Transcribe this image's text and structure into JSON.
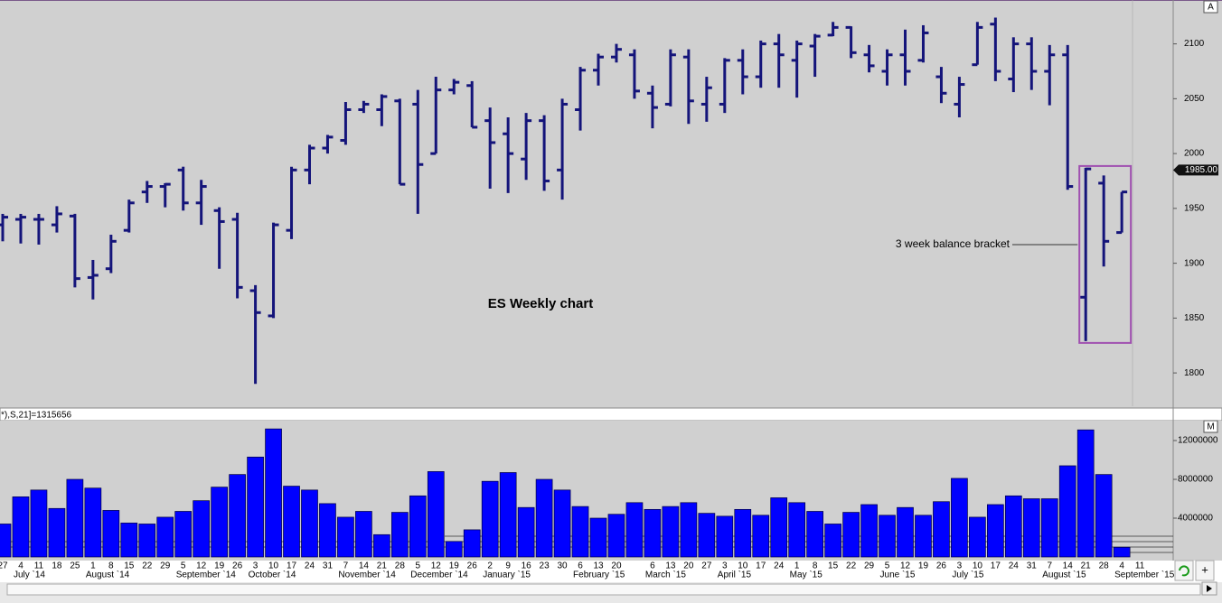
{
  "chart_data": {
    "type": "ohlc",
    "title": "ES Weekly chart",
    "annotation": "3 week balance bracket",
    "indicator_label": "*),S,21]=1315656",
    "last_price": {
      "value": 1985,
      "label": "1985.00"
    },
    "price_axis_button": "A",
    "volume_axis_button": "M",
    "categories": [
      "27",
      "4",
      "11",
      "18",
      "25",
      "1",
      "8",
      "15",
      "22",
      "29",
      "5",
      "12",
      "19",
      "26",
      "3",
      "10",
      "17",
      "24",
      "31",
      "7",
      "14",
      "21",
      "28",
      "5",
      "12",
      "19",
      "26",
      "2",
      "9",
      "16",
      "23",
      "30",
      "6",
      "13",
      "20",
      null,
      "6",
      "13",
      "20",
      "27",
      "3",
      "10",
      "17",
      "24",
      "1",
      "8",
      "15",
      "22",
      "29",
      "5",
      "12",
      "19",
      "26",
      "3",
      "10",
      "17",
      "24",
      "31",
      "7",
      "14",
      "21",
      "28",
      "4",
      "11"
    ],
    "months": [
      {
        "label": "July `14",
        "category": 1
      },
      {
        "label": "August `14",
        "category": 5
      },
      {
        "label": "September `14",
        "category": 10
      },
      {
        "label": "October `14",
        "category": 14
      },
      {
        "label": "November `14",
        "category": 19
      },
      {
        "label": "December `14",
        "category": 23
      },
      {
        "label": "January `15",
        "category": 27
      },
      {
        "label": "February `15",
        "category": 32
      },
      {
        "label": "March `15",
        "category": 36
      },
      {
        "label": "April `15",
        "category": 40
      },
      {
        "label": "May `15",
        "category": 44
      },
      {
        "label": "June `15",
        "category": 49
      },
      {
        "label": "July `15",
        "category": 53
      },
      {
        "label": "August `15",
        "category": 58
      },
      {
        "label": "September `15",
        "category": 62
      }
    ],
    "color": "#14147a",
    "open": [
      1935,
      1940,
      1940,
      1935,
      1943,
      1887,
      1895,
      1930,
      1965,
      1970,
      1985,
      1955,
      1948,
      1940,
      1875,
      1852,
      1930,
      1985,
      2005,
      2012,
      2040,
      2040,
      2048,
      2045,
      2000,
      2058,
      2062,
      2030,
      2018,
      1995,
      2030,
      1985,
      2040,
      2076,
      2088,
      2090,
      2055,
      2045,
      2088,
      2045,
      2045,
      2085,
      2070,
      2100,
      2085,
      2098,
      2108,
      2115,
      2090,
      2075,
      2090,
      2085,
      2070,
      2045,
      2081,
      2118,
      2068,
      2100,
      2075,
      2090,
      1869,
      1973,
      1928,
      null
    ],
    "high": [
      1945,
      1945,
      1945,
      1952,
      1945,
      1903,
      1926,
      1958,
      1975,
      1973,
      1988,
      1976,
      1951,
      1946,
      1880,
      1937,
      1988,
      2008,
      2017,
      2047,
      2048,
      2054,
      2050,
      2058,
      2070,
      2068,
      2066,
      2042,
      2033,
      2037,
      2035,
      2050,
      2079,
      2091,
      2100,
      2095,
      2062,
      2095,
      2095,
      2070,
      2087,
      2095,
      2103,
      2109,
      2103,
      2109,
      2120,
      2116,
      2099,
      2095,
      2113,
      2117,
      2079,
      2070,
      2120,
      2124,
      2106,
      2106,
      2099,
      2099,
      1987,
      1980,
      1965,
      null
    ],
    "low": [
      1920,
      1918,
      1917,
      1928,
      1878,
      1867,
      1891,
      1928,
      1955,
      1951,
      1948,
      1935,
      1895,
      1868,
      1790,
      1850,
      1922,
      1972,
      2000,
      2008,
      2037,
      2025,
      1972,
      1945,
      2000,
      2054,
      2024,
      1968,
      1964,
      1976,
      1966,
      1958,
      2021,
      2062,
      2083,
      2050,
      2023,
      2043,
      2027,
      2029,
      2037,
      2054,
      2060,
      2060,
      2051,
      2070,
      2107,
      2087,
      2074,
      2062,
      2062,
      2083,
      2046,
      2033,
      2081,
      2066,
      2056,
      2058,
      2044,
      1967,
      1829,
      1897,
      1928,
      null
    ],
    "close": [
      1942,
      1942,
      1940,
      1945,
      1886,
      1889,
      1920,
      1955,
      1970,
      1972,
      1955,
      1970,
      1938,
      1878,
      1855,
      1935,
      1985,
      2005,
      2015,
      2040,
      2045,
      2052,
      1972,
      1990,
      2058,
      2065,
      2024,
      2010,
      2000,
      2030,
      1975,
      2045,
      2076,
      2088,
      2095,
      2057,
      2042,
      2090,
      2048,
      2060,
      2085,
      2070,
      2100,
      2090,
      2100,
      2107,
      2115,
      2092,
      2080,
      2090,
      2075,
      2110,
      2055,
      2063,
      2115,
      2075,
      2100,
      2075,
      2090,
      1970,
      1986,
      1920,
      1965,
      null
    ],
    "ylim": [
      1768,
      2140
    ],
    "yticks": [
      1800,
      1850,
      1900,
      1950,
      2000,
      2050,
      2100
    ],
    "volume": {
      "color": "#0000ff",
      "values": [
        3400000,
        6200000,
        6900000,
        5000000,
        8000000,
        7100000,
        4800000,
        3500000,
        3400000,
        4100000,
        4700000,
        5800000,
        7200000,
        8500000,
        10300000,
        13200000,
        7300000,
        6900000,
        5500000,
        4100000,
        4700000,
        2300000,
        4600000,
        6300000,
        8800000,
        1600000,
        2800000,
        7800000,
        8700000,
        5100000,
        8000000,
        6900000,
        5200000,
        4000000,
        4400000,
        5600000,
        4900000,
        5200000,
        5600000,
        4500000,
        4200000,
        4900000,
        4300000,
        6100000,
        5600000,
        4700000,
        3400000,
        4600000,
        5400000,
        4300000,
        5100000,
        4300000,
        5700000,
        8100000,
        4100000,
        5400000,
        6300000,
        6000000,
        6000000,
        9400000,
        13100000,
        8500000,
        1000000,
        null
      ],
      "ylim": [
        0,
        14050000
      ],
      "yticks": [
        4000000,
        8000000,
        12000000
      ]
    }
  }
}
